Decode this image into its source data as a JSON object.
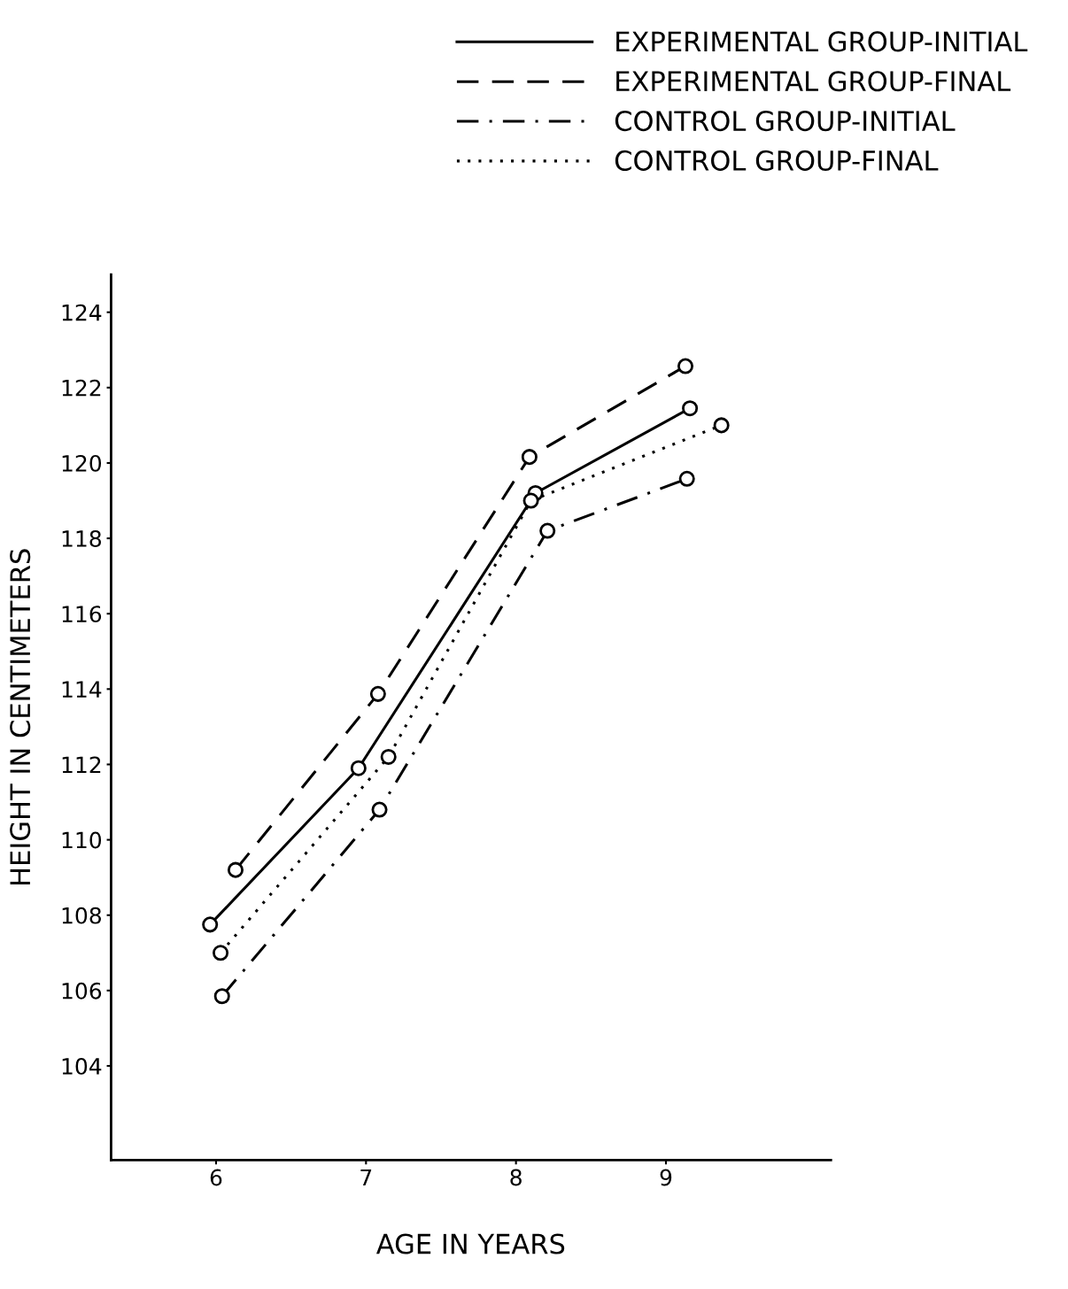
{
  "chart_data": {
    "type": "line",
    "xlabel": "AGE IN YEARS",
    "ylabel": "HEIGHT IN CENTIMETERS",
    "xlim": [
      5.3,
      10.1
    ],
    "xticks": [
      6,
      7,
      8,
      9
    ],
    "ylim": [
      101.5,
      125
    ],
    "yticks": [
      104,
      106,
      108,
      110,
      112,
      114,
      116,
      118,
      120,
      122,
      124
    ],
    "grid": false,
    "legend": "top right",
    "marker": "circle",
    "series": [
      {
        "name": "EXPERIMENTAL GROUP-INITIAL",
        "color": "#000000",
        "line_style": "solid",
        "x": [
          5.96,
          6.95,
          8.13,
          9.16
        ],
        "values": [
          107.75,
          111.9,
          119.2,
          121.45
        ]
      },
      {
        "name": "EXPERIMENTAL GROUP-FINAL",
        "color": "#000000",
        "line_style": "dashed",
        "x": [
          6.13,
          7.08,
          8.09,
          9.13
        ],
        "values": [
          109.2,
          113.87,
          120.16,
          122.57
        ]
      },
      {
        "name": "CONTROL GROUP-INITIAL",
        "color": "#000000",
        "line_style": "dashdot",
        "x": [
          6.04,
          7.09,
          8.21,
          9.14
        ],
        "values": [
          105.85,
          110.8,
          118.2,
          119.58
        ]
      },
      {
        "name": "CONTROL GROUP-FINAL",
        "color": "#000000",
        "line_style": "dotted",
        "x": [
          6.03,
          7.15,
          8.1,
          9.37
        ],
        "values": [
          107.0,
          112.2,
          119.0,
          121.0
        ]
      }
    ]
  }
}
